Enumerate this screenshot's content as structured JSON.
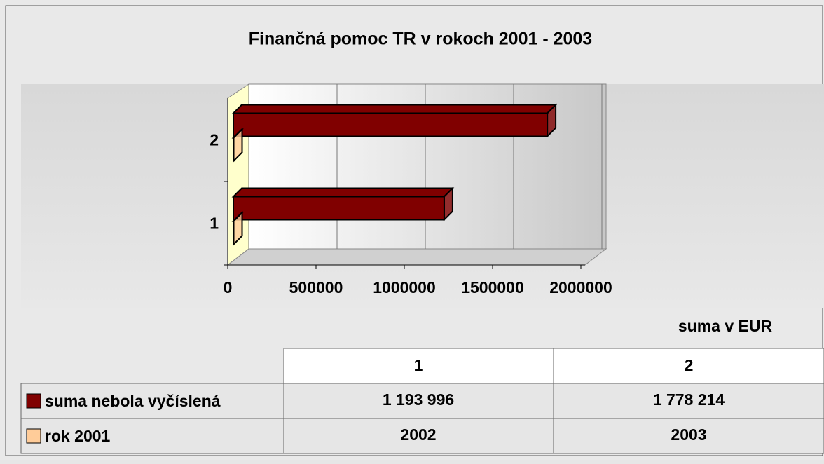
{
  "chart_data": {
    "type": "bar",
    "title": "Finančná pomoc TR v rokoch 2001 - 2003",
    "orientation": "horizontal",
    "three_d": true,
    "categories": [
      "1",
      "2"
    ],
    "series": [
      {
        "name": "suma nebola vyčíslená",
        "color": "#800000",
        "values": [
          1193996,
          1778214
        ],
        "value_labels": [
          "1 193 996",
          "1 778 214"
        ]
      },
      {
        "name": "rok 2001",
        "color": "#ffcc99",
        "values": [
          2002,
          2003
        ]
      }
    ],
    "xlim": [
      0,
      2000000
    ],
    "xticks": [
      0,
      500000,
      1000000,
      1500000,
      2000000
    ],
    "grid": true,
    "unit_note": "suma v EUR"
  }
}
